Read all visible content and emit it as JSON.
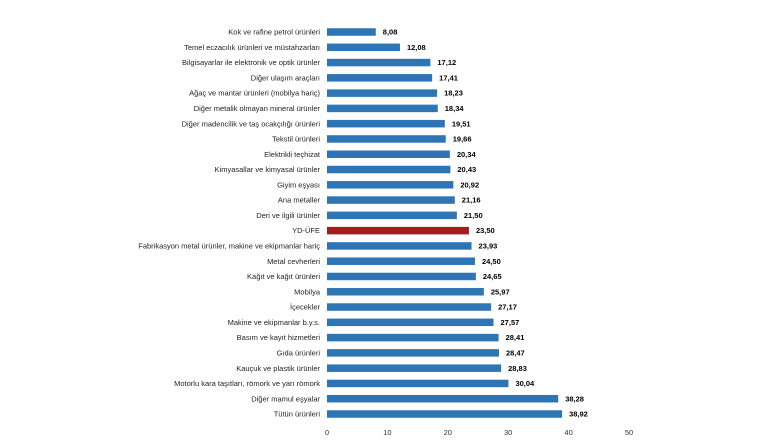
{
  "chart_data": {
    "type": "bar",
    "orientation": "horizontal",
    "categories": [
      "Kok ve rafine petrol ürünleri",
      "Temel eczacılık ürünleri ve müstahzarları",
      "Bilgisayarlar ile elektronik ve optik ürünler",
      "Diğer ulaşım araçları",
      "Ağaç ve mantar ürünleri (mobilya hariç)",
      "Diğer metalik olmayan mineral ürünler",
      "Diğer madencilik ve taş ocakçılığı ürünleri",
      "Tekstil ürünleri",
      "Elektrikli teçhizat",
      "Kimyasallar ve kimyasal ürünler",
      "Giyim eşyası",
      "Ana metaller",
      "Deri ve ilgili ürünler",
      "YD-ÜFE",
      "Fabrikasyon metal ürünler, makine ve ekipmanlar hariç",
      "Metal cevherleri",
      "Kağıt ve kağıt ürünleri",
      "Mobilya",
      "İçecekler",
      "Makine ve ekipmanlar b.y.s.",
      "Basım ve kayıt hizmetleri",
      "Gıda ürünleri",
      "Kauçuk ve plastik ürünler",
      "Motorlu kara taşıtları, römork ve yarı römork",
      "Diğer mamul eşyalar",
      "Tütün ürünleri"
    ],
    "values": [
      8.08,
      12.08,
      17.12,
      17.41,
      18.23,
      18.34,
      19.51,
      19.66,
      20.34,
      20.43,
      20.92,
      21.16,
      21.5,
      23.5,
      23.93,
      24.5,
      24.65,
      25.97,
      27.17,
      27.57,
      28.41,
      28.47,
      28.83,
      30.04,
      38.28,
      38.92
    ],
    "value_labels": [
      "8,08",
      "12,08",
      "17,12",
      "17,41",
      "18,23",
      "18,34",
      "19,51",
      "19,66",
      "20,34",
      "20,43",
      "20,92",
      "21,16",
      "21,50",
      "23,50",
      "23,93",
      "24,50",
      "24,65",
      "25,97",
      "27,17",
      "27,57",
      "28,41",
      "28,47",
      "28,83",
      "30,04",
      "38,28",
      "38,92"
    ],
    "highlight_category": "YD-ÜFE",
    "xlim": [
      0,
      50
    ],
    "xticks": [
      0,
      10,
      20,
      30,
      40,
      50
    ],
    "xtick_labels": [
      "0",
      "10",
      "20",
      "30",
      "40",
      "50"
    ],
    "grid": false,
    "colors": {
      "bar": "#2e75b6",
      "highlight": "#a61c1c"
    },
    "title": "",
    "xlabel": "",
    "ylabel": ""
  }
}
